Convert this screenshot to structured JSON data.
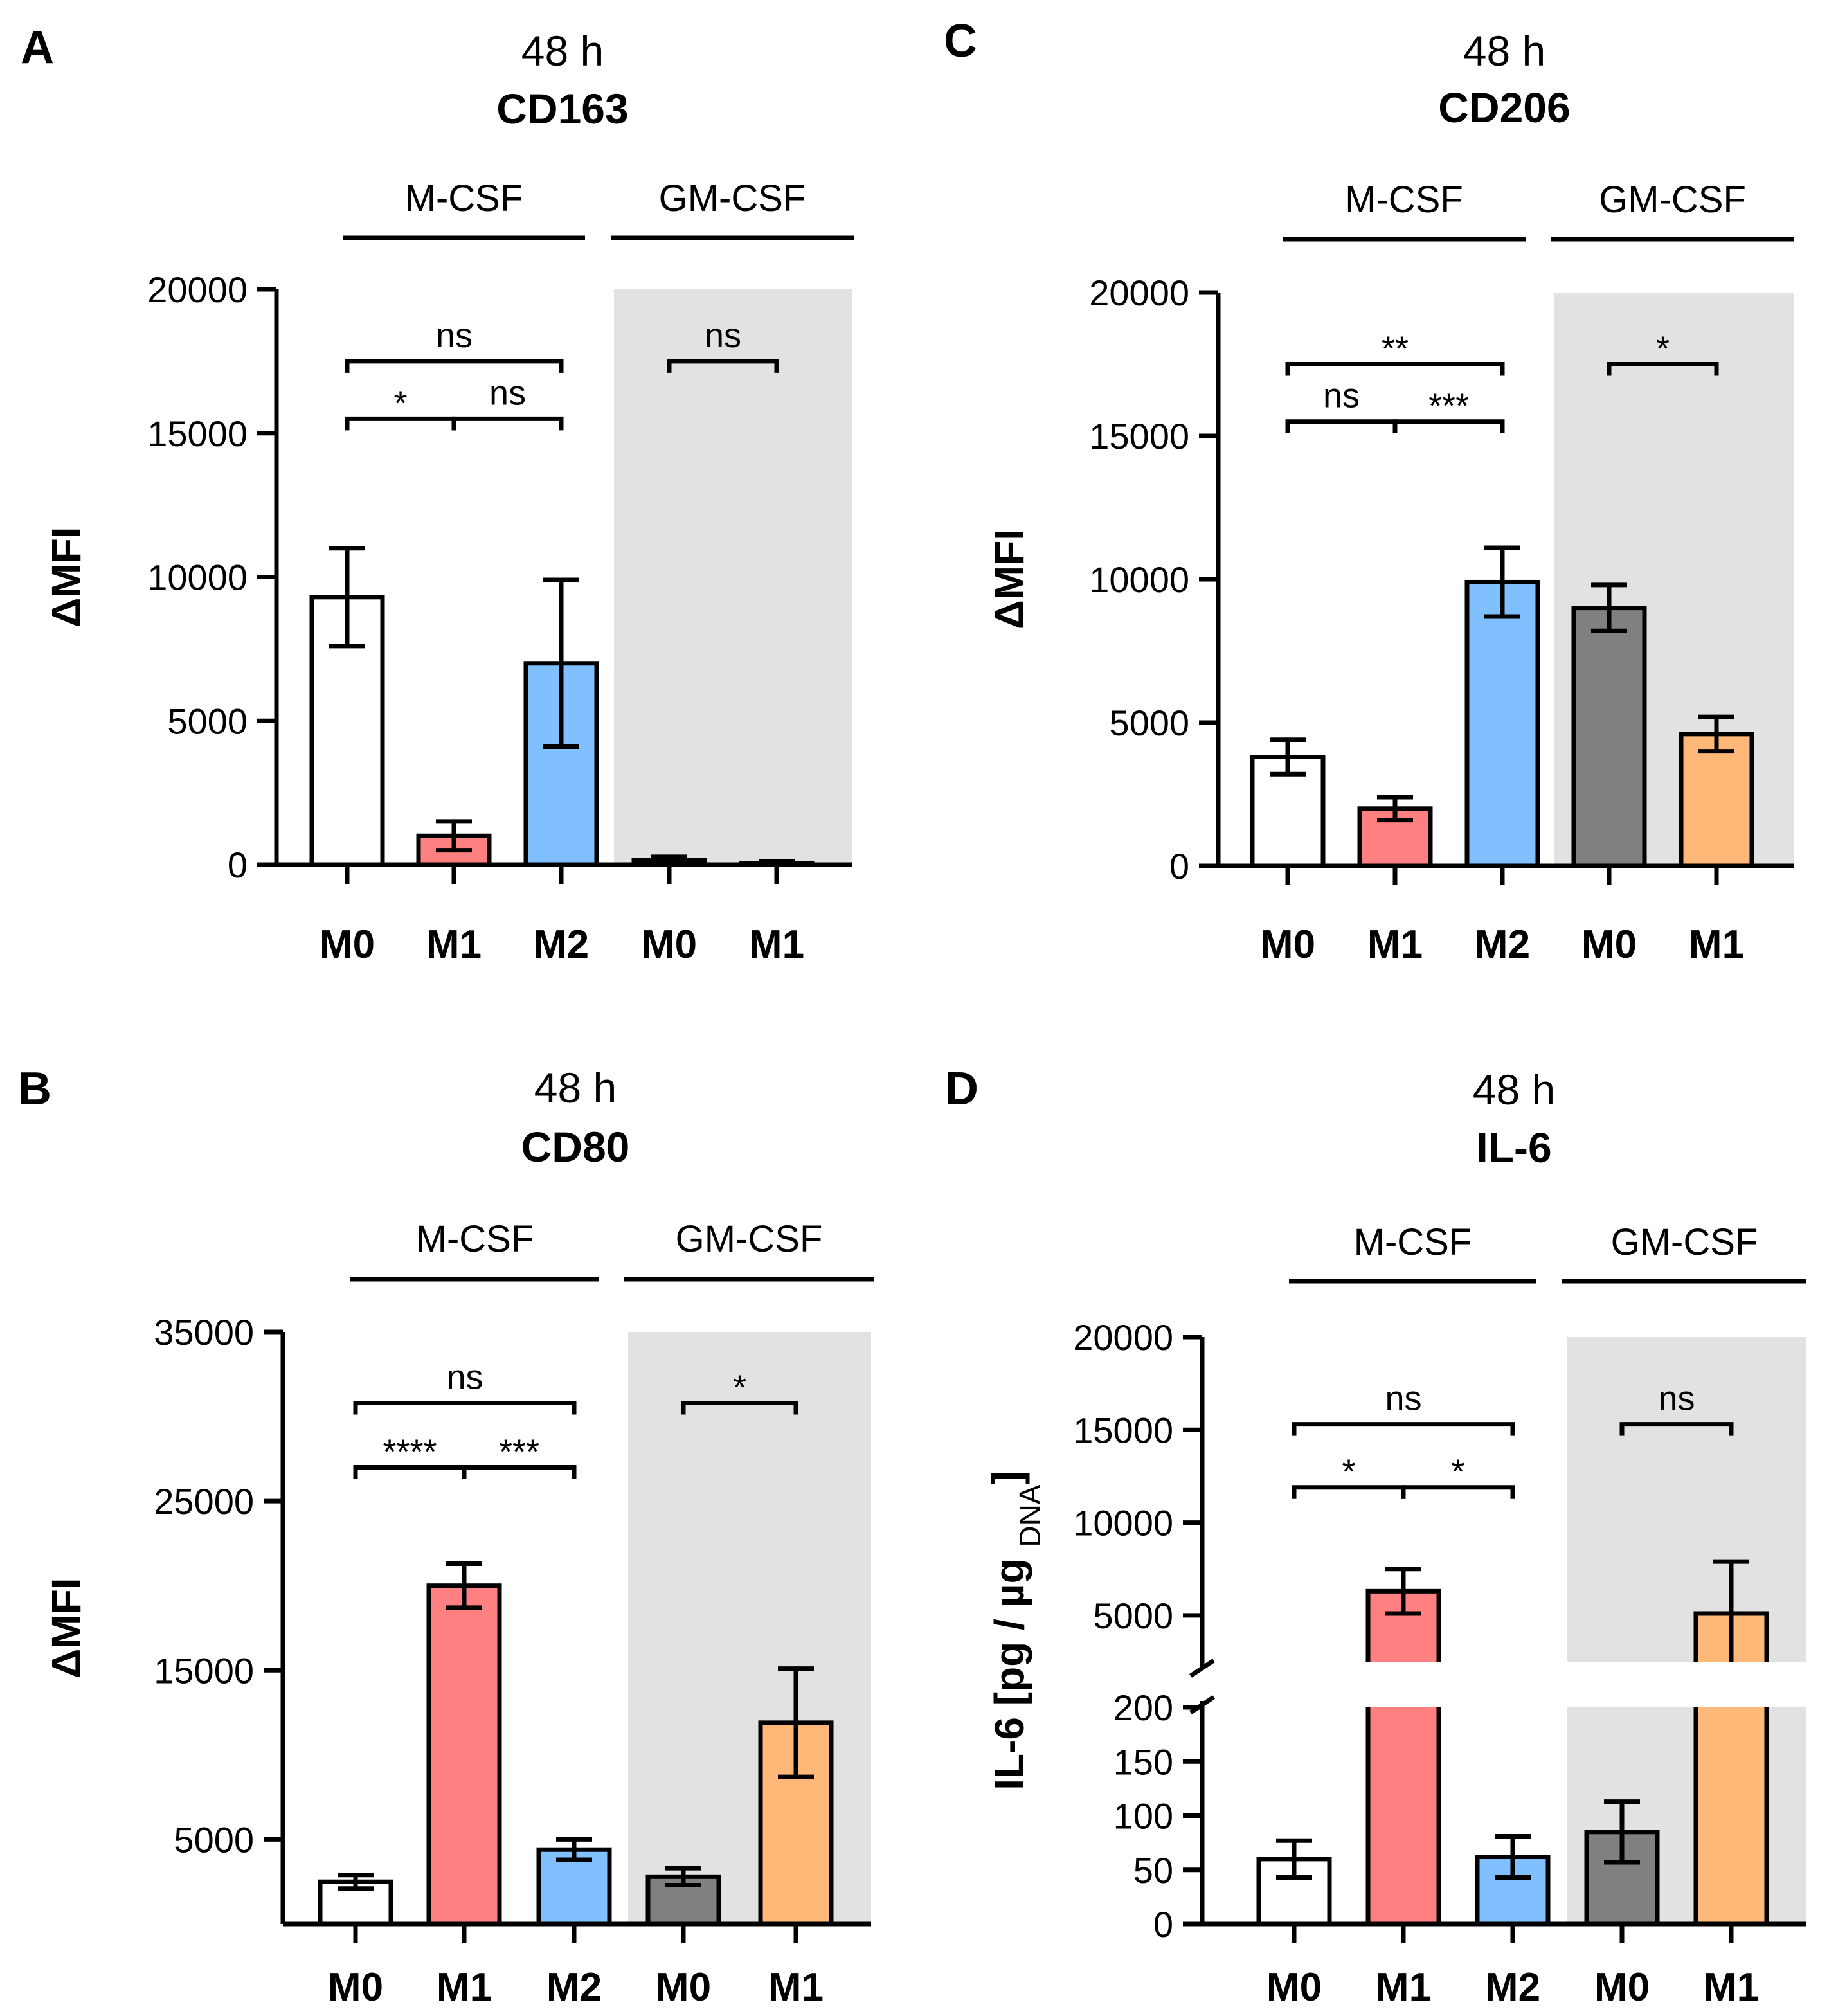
{
  "chart_data": [
    {
      "panel": "A",
      "type": "bar",
      "title_time": "48 h",
      "title_marker": "CD163",
      "ylabel": "ΔMFI",
      "ylim": [
        0,
        20000
      ],
      "yticks": [
        0,
        5000,
        10000,
        15000,
        20000
      ],
      "y_tick_labels": [
        "0",
        "5000",
        "10000",
        "15000",
        "20000"
      ],
      "groups": [
        {
          "label": "M-CSF",
          "bar_indices": [
            0,
            1,
            2
          ]
        },
        {
          "label": "GM-CSF",
          "bar_indices": [
            3,
            4
          ]
        }
      ],
      "shaded_group": "GM-CSF",
      "bars": [
        {
          "category": "M0",
          "group": "M-CSF",
          "value": 9300,
          "err": 1700,
          "color": "#ffffff"
        },
        {
          "category": "M1",
          "group": "M-CSF",
          "value": 1000,
          "err": 500,
          "color": "#ff8080"
        },
        {
          "category": "M2",
          "group": "M-CSF",
          "value": 7000,
          "err": 2900,
          "color": "#80c0ff"
        },
        {
          "category": "M0",
          "group": "GM-CSF",
          "value": 150,
          "err": 120,
          "color": "#808080"
        },
        {
          "category": "M1",
          "group": "GM-CSF",
          "value": 50,
          "err": 50,
          "color": "#ffb878"
        }
      ],
      "significance": [
        {
          "from": 0,
          "to": 2,
          "label": "ns",
          "level": 17500
        },
        {
          "from": 0,
          "to": 1,
          "label": "*",
          "level": 15500
        },
        {
          "from": 1,
          "to": 2,
          "label": "ns",
          "level": 15500
        },
        {
          "from": 3,
          "to": 4,
          "label": "ns",
          "level": 17500
        }
      ]
    },
    {
      "panel": "C",
      "type": "bar",
      "title_time": "48 h",
      "title_marker": "CD206",
      "ylabel": "ΔMFI",
      "ylim": [
        0,
        20000
      ],
      "yticks": [
        0,
        5000,
        10000,
        15000,
        20000
      ],
      "y_tick_labels": [
        "0",
        "5000",
        "10000",
        "15000",
        "20000"
      ],
      "groups": [
        {
          "label": "M-CSF",
          "bar_indices": [
            0,
            1,
            2
          ]
        },
        {
          "label": "GM-CSF",
          "bar_indices": [
            3,
            4
          ]
        }
      ],
      "shaded_group": "GM-CSF",
      "bars": [
        {
          "category": "M0",
          "group": "M-CSF",
          "value": 3800,
          "err": 600,
          "color": "#ffffff"
        },
        {
          "category": "M1",
          "group": "M-CSF",
          "value": 2000,
          "err": 400,
          "color": "#ff8080"
        },
        {
          "category": "M2",
          "group": "M-CSF",
          "value": 9900,
          "err": 1200,
          "color": "#80c0ff"
        },
        {
          "category": "M0",
          "group": "GM-CSF",
          "value": 9000,
          "err": 800,
          "color": "#808080"
        },
        {
          "category": "M1",
          "group": "GM-CSF",
          "value": 4600,
          "err": 600,
          "color": "#ffb878"
        }
      ],
      "significance": [
        {
          "from": 0,
          "to": 2,
          "label": "**",
          "level": 17500
        },
        {
          "from": 0,
          "to": 1,
          "label": "ns",
          "level": 15500
        },
        {
          "from": 1,
          "to": 2,
          "label": "***",
          "level": 15500
        },
        {
          "from": 3,
          "to": 4,
          "label": "*",
          "level": 17500
        }
      ]
    },
    {
      "panel": "B",
      "type": "bar",
      "title_time": "48 h",
      "title_marker": "CD80",
      "ylabel": "ΔMFI",
      "ylim": [
        0,
        35000
      ],
      "yticks": [
        5000,
        15000,
        25000,
        35000
      ],
      "y_tick_labels": [
        "5000",
        "15000",
        "25000",
        "35000"
      ],
      "groups": [
        {
          "label": "M-CSF",
          "bar_indices": [
            0,
            1,
            2
          ]
        },
        {
          "label": "GM-CSF",
          "bar_indices": [
            3,
            4
          ]
        }
      ],
      "shaded_group": "GM-CSF",
      "bars": [
        {
          "category": "M0",
          "group": "M-CSF",
          "value": 2500,
          "err": 400,
          "color": "#ffffff"
        },
        {
          "category": "M1",
          "group": "M-CSF",
          "value": 20000,
          "err": 1300,
          "color": "#ff8080"
        },
        {
          "category": "M2",
          "group": "M-CSF",
          "value": 4400,
          "err": 600,
          "color": "#80c0ff"
        },
        {
          "category": "M0",
          "group": "GM-CSF",
          "value": 2800,
          "err": 500,
          "color": "#808080"
        },
        {
          "category": "M1",
          "group": "GM-CSF",
          "value": 11900,
          "err": 3200,
          "color": "#ffb878"
        }
      ],
      "significance": [
        {
          "from": 0,
          "to": 2,
          "label": "ns",
          "level": 30800
        },
        {
          "from": 0,
          "to": 1,
          "label": "****",
          "level": 27000
        },
        {
          "from": 1,
          "to": 2,
          "label": "***",
          "level": 27000
        },
        {
          "from": 3,
          "to": 4,
          "label": "*",
          "level": 30800
        }
      ]
    },
    {
      "panel": "D",
      "type": "bar",
      "title_time": "48 h",
      "title_marker": "IL-6",
      "ylabel": "IL-6 [pg / µg DNA]",
      "ylabel_main": "IL-6 [pg / µg ",
      "ylabel_sub": "DNA",
      "ylabel_close": "]",
      "broken_axis": true,
      "ylim_lower": [
        0,
        200
      ],
      "ylim_upper": [
        2500,
        20000
      ],
      "yticks_lower": [
        0,
        50,
        100,
        150,
        200
      ],
      "y_tick_labels_lower": [
        "0",
        "50",
        "100",
        "150",
        "200"
      ],
      "yticks_upper": [
        5000,
        10000,
        15000,
        20000
      ],
      "y_tick_labels_upper": [
        "5000",
        "10000",
        "15000",
        "20000"
      ],
      "groups": [
        {
          "label": "M-CSF",
          "bar_indices": [
            0,
            1,
            2
          ]
        },
        {
          "label": "GM-CSF",
          "bar_indices": [
            3,
            4
          ]
        }
      ],
      "shaded_group": "GM-CSF",
      "bars": [
        {
          "category": "M0",
          "group": "M-CSF",
          "value": 60,
          "err": 17,
          "color": "#ffffff"
        },
        {
          "category": "M1",
          "group": "M-CSF",
          "value": 6300,
          "err": 1200,
          "color": "#ff8080"
        },
        {
          "category": "M2",
          "group": "M-CSF",
          "value": 62,
          "err": 19,
          "color": "#80c0ff"
        },
        {
          "category": "M0",
          "group": "GM-CSF",
          "value": 85,
          "err": 28,
          "color": "#808080"
        },
        {
          "category": "M1",
          "group": "GM-CSF",
          "value": 5100,
          "err": 2800,
          "color": "#ffb878"
        }
      ],
      "significance": [
        {
          "from": 0,
          "to": 2,
          "label": "ns",
          "level": 15300
        },
        {
          "from": 0,
          "to": 1,
          "label": "*",
          "level": 11900
        },
        {
          "from": 1,
          "to": 2,
          "label": "*",
          "level": 11900
        },
        {
          "from": 3,
          "to": 4,
          "label": "ns",
          "level": 15300
        }
      ]
    }
  ]
}
